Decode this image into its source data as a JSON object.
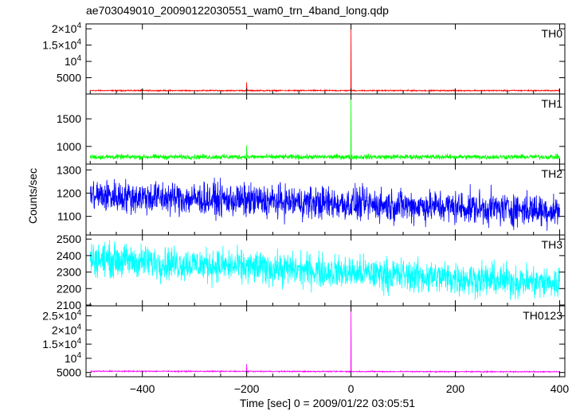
{
  "chart_data": {
    "type": "line",
    "title": "ae703049010_20090122030551_wam0_trn_4band_long.qdp",
    "xlabel": "Time [sec] 0 = 2009/01/22 03:05:51",
    "ylabel": "Counts/sec",
    "xlim": [
      -508,
      410
    ],
    "xticks": [
      "−400",
      "−200",
      "0",
      "200",
      "400"
    ],
    "xtick_values": [
      -400,
      -200,
      0,
      200,
      400
    ],
    "grid": false,
    "panels": [
      {
        "name": "TH0",
        "color": "#ff0000",
        "ylim": [
          0,
          21500
        ],
        "yticks": [
          {
            "value": 5000,
            "mant": "5000",
            "exp": ""
          },
          {
            "value": 10000,
            "mant": "10",
            "exp": "4"
          },
          {
            "value": 15000,
            "mant": "1.5×10",
            "exp": "4"
          },
          {
            "value": 20000,
            "mant": "2×10",
            "exp": "4"
          }
        ],
        "baseline": 1050,
        "noise": 90,
        "trend": 0,
        "spikes": [
          {
            "x": 0,
            "y": 21000
          },
          {
            "x": -200,
            "y": 3600
          }
        ]
      },
      {
        "name": "TH1",
        "color": "#00ff00",
        "ylim": [
          680,
          1950
        ],
        "yticks": [
          {
            "value": 1000,
            "mant": "1000",
            "exp": ""
          },
          {
            "value": 1500,
            "mant": "1500",
            "exp": ""
          }
        ],
        "baseline": 810,
        "noise": 22,
        "trend": 0,
        "spikes": [
          {
            "x": 0,
            "y": 1950
          },
          {
            "x": -200,
            "y": 1020
          }
        ]
      },
      {
        "name": "TH2",
        "color": "#0000ff",
        "ylim": [
          1020,
          1325
        ],
        "yticks": [
          {
            "value": 1100,
            "mant": "1100",
            "exp": ""
          },
          {
            "value": 1200,
            "mant": "1200",
            "exp": ""
          },
          {
            "value": 1300,
            "mant": "1300",
            "exp": ""
          }
        ],
        "baseline": 1190,
        "noise": 35,
        "trend": -65,
        "spikes": []
      },
      {
        "name": "TH3",
        "color": "#00ffff",
        "ylim": [
          2095,
          2525
        ],
        "yticks": [
          {
            "value": 2100,
            "mant": "2100",
            "exp": ""
          },
          {
            "value": 2200,
            "mant": "2200",
            "exp": ""
          },
          {
            "value": 2300,
            "mant": "2300",
            "exp": ""
          },
          {
            "value": 2400,
            "mant": "2400",
            "exp": ""
          },
          {
            "value": 2500,
            "mant": "2500",
            "exp": ""
          }
        ],
        "baseline": 2380,
        "noise": 50,
        "trend": -150,
        "spikes": []
      },
      {
        "name": "TH0123",
        "color": "#ff00ff",
        "ylim": [
          3500,
          28500
        ],
        "yticks": [
          {
            "value": 5000,
            "mant": "5000",
            "exp": ""
          },
          {
            "value": 10000,
            "mant": "10",
            "exp": "4"
          },
          {
            "value": 15000,
            "mant": "1.5×10",
            "exp": "4"
          },
          {
            "value": 20000,
            "mant": "2×10",
            "exp": "4"
          },
          {
            "value": 25000,
            "mant": "2.5×10",
            "exp": "4"
          }
        ],
        "baseline": 5450,
        "noise": 100,
        "trend": -200,
        "spikes": [
          {
            "x": 0,
            "y": 28500
          },
          {
            "x": -200,
            "y": 8000
          }
        ]
      }
    ]
  }
}
